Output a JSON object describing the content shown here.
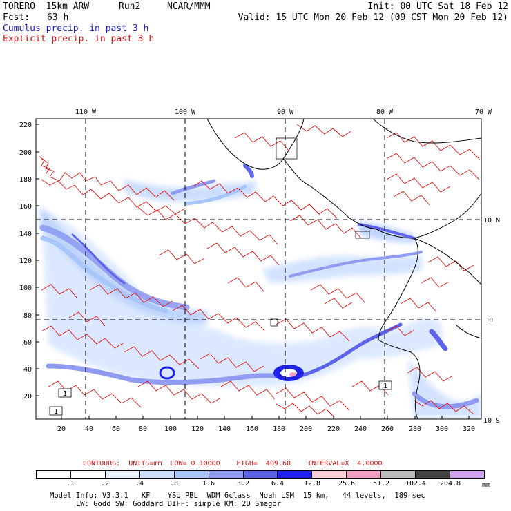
{
  "header": {
    "model": "TORERO  15km ARW",
    "run": "Run2",
    "org": "NCAR/MMM",
    "init": "Init: 00 UTC Sat 18 Feb 12",
    "fcst_label": "Fcst:",
    "fcst_value": "63 h",
    "valid": "Valid: 15 UTC Mon 20 Feb 12 (09 CST Mon 20 Feb 12)",
    "field1": "Cumulus precip. in past 3 h",
    "field2": "Explicit precip. in past 3 h"
  },
  "map": {
    "lon_labels": [
      "110 W",
      "100 W",
      "90 W",
      "80 W",
      "70 W"
    ],
    "lat_labels": [
      "10 N",
      "0",
      "10 S"
    ],
    "y_ticks": [
      "220",
      "200",
      "180",
      "160",
      "140",
      "120",
      "100",
      "80",
      "60",
      "40",
      "20"
    ],
    "x_ticks": [
      "20",
      "40",
      "60",
      "80",
      "100",
      "120",
      "140",
      "160",
      "180",
      "200",
      "220",
      "240",
      "260",
      "280",
      "300",
      "320"
    ],
    "box_labels": [
      "1",
      "1",
      "1"
    ],
    "colors": {
      "contour": "#e01010",
      "coast": "#000000"
    }
  },
  "contours_info": {
    "units_label": "CONTOURS:  UNITS=mm  LOW= 0.10000",
    "high_label": "HIGH=  409.60",
    "interval_label": "INTERVAL=X  4.0000"
  },
  "legend": {
    "labels": [
      ".1",
      ".2",
      ".4",
      ".8",
      "1.6",
      "3.2",
      "6.4",
      "12.8",
      "25.6",
      "51.2",
      "102.4",
      "204.8"
    ],
    "unit": "mm",
    "colors": [
      "#ffffff",
      "#ffffff",
      "#ebf2ff",
      "#cfe0ff",
      "#a9c6fa",
      "#8f9cf2",
      "#5d64ea",
      "#1f23e6",
      "#ffd0d8",
      "#f2a0c4",
      "#bdbdbd",
      "#444444",
      "#cfa2ee"
    ]
  },
  "footer": {
    "line1": "Model Info: V3.3.1   KF    YSU PBL  WDM 6class  Noah LSM  15 km,   44 levels,  189 sec",
    "line2": "LW: Godd SW: Goddard DIFF: simple KM: 2D Smagor"
  }
}
